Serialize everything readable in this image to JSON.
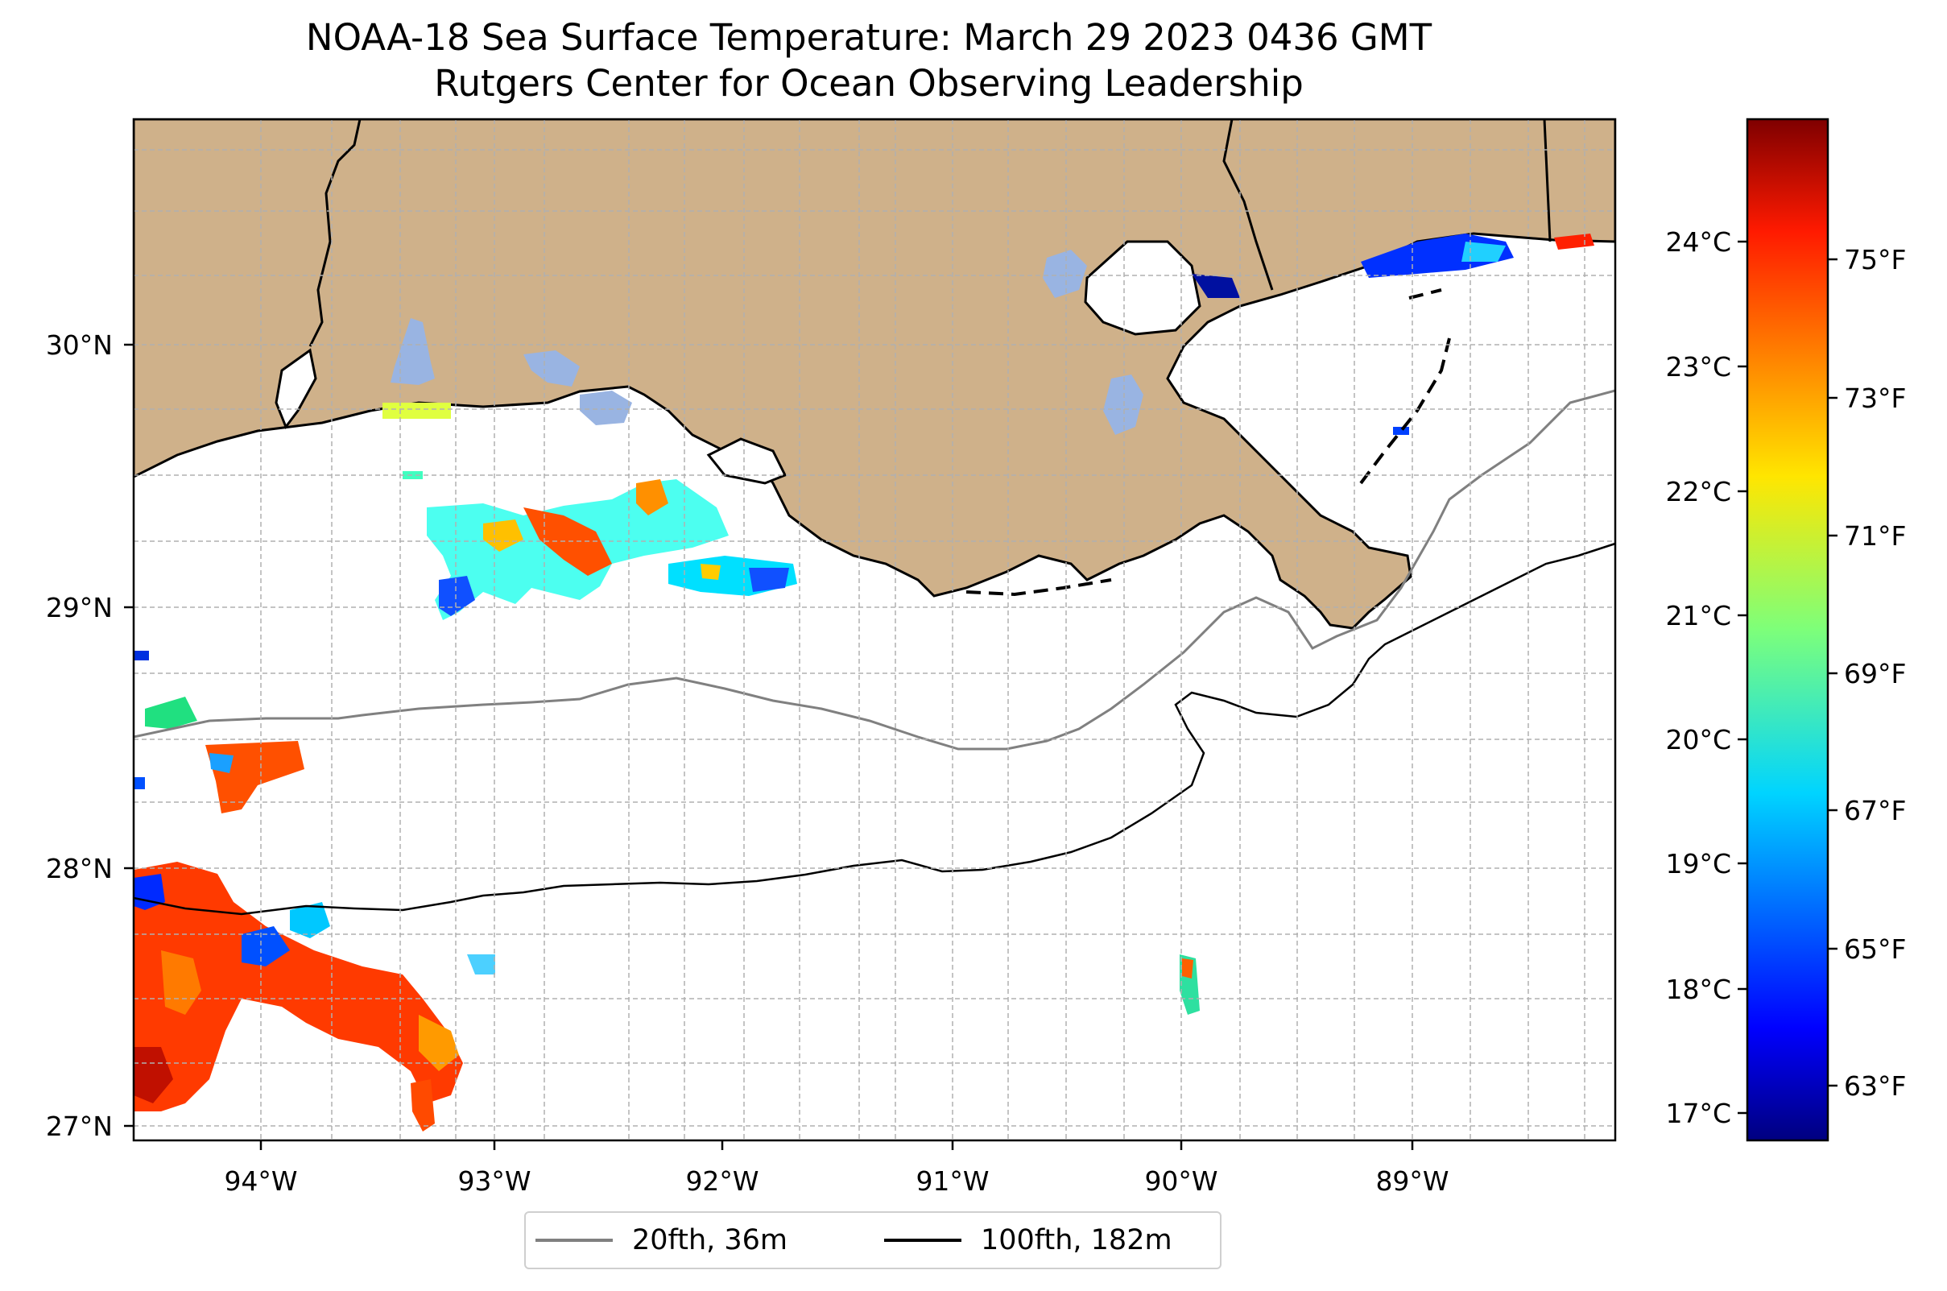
{
  "map": {
    "title": "NOAA-18 Sea Surface Temperature: March 29 2023 0436 GMT",
    "subtitle": "Rutgers Center for Ocean Observing Leadership",
    "lon_labels": [
      "94°W",
      "93°W",
      "92°W",
      "91°W",
      "90°W",
      "89°W"
    ],
    "lat_labels": [
      "30°N",
      "29°N",
      "28°N",
      "27°N"
    ],
    "colors": {
      "land": "#cfb18a",
      "lakes": "#99b4e2",
      "ocean": "#ffffff",
      "contour_20": "#808080",
      "contour_100": "#000000"
    }
  },
  "legend": {
    "items": [
      {
        "label": "20fth, 36m",
        "color": "#808080"
      },
      {
        "label": "100fth, 182m",
        "color": "#000000"
      }
    ]
  },
  "colorbar": {
    "celsius_labels": [
      "24°C",
      "23°C",
      "22°C",
      "21°C",
      "20°C",
      "19°C",
      "18°C",
      "17°C"
    ],
    "fahrenheit_labels": [
      "75°F",
      "73°F",
      "71°F",
      "69°F",
      "67°F",
      "65°F",
      "63°F"
    ],
    "colormap": "jet"
  }
}
